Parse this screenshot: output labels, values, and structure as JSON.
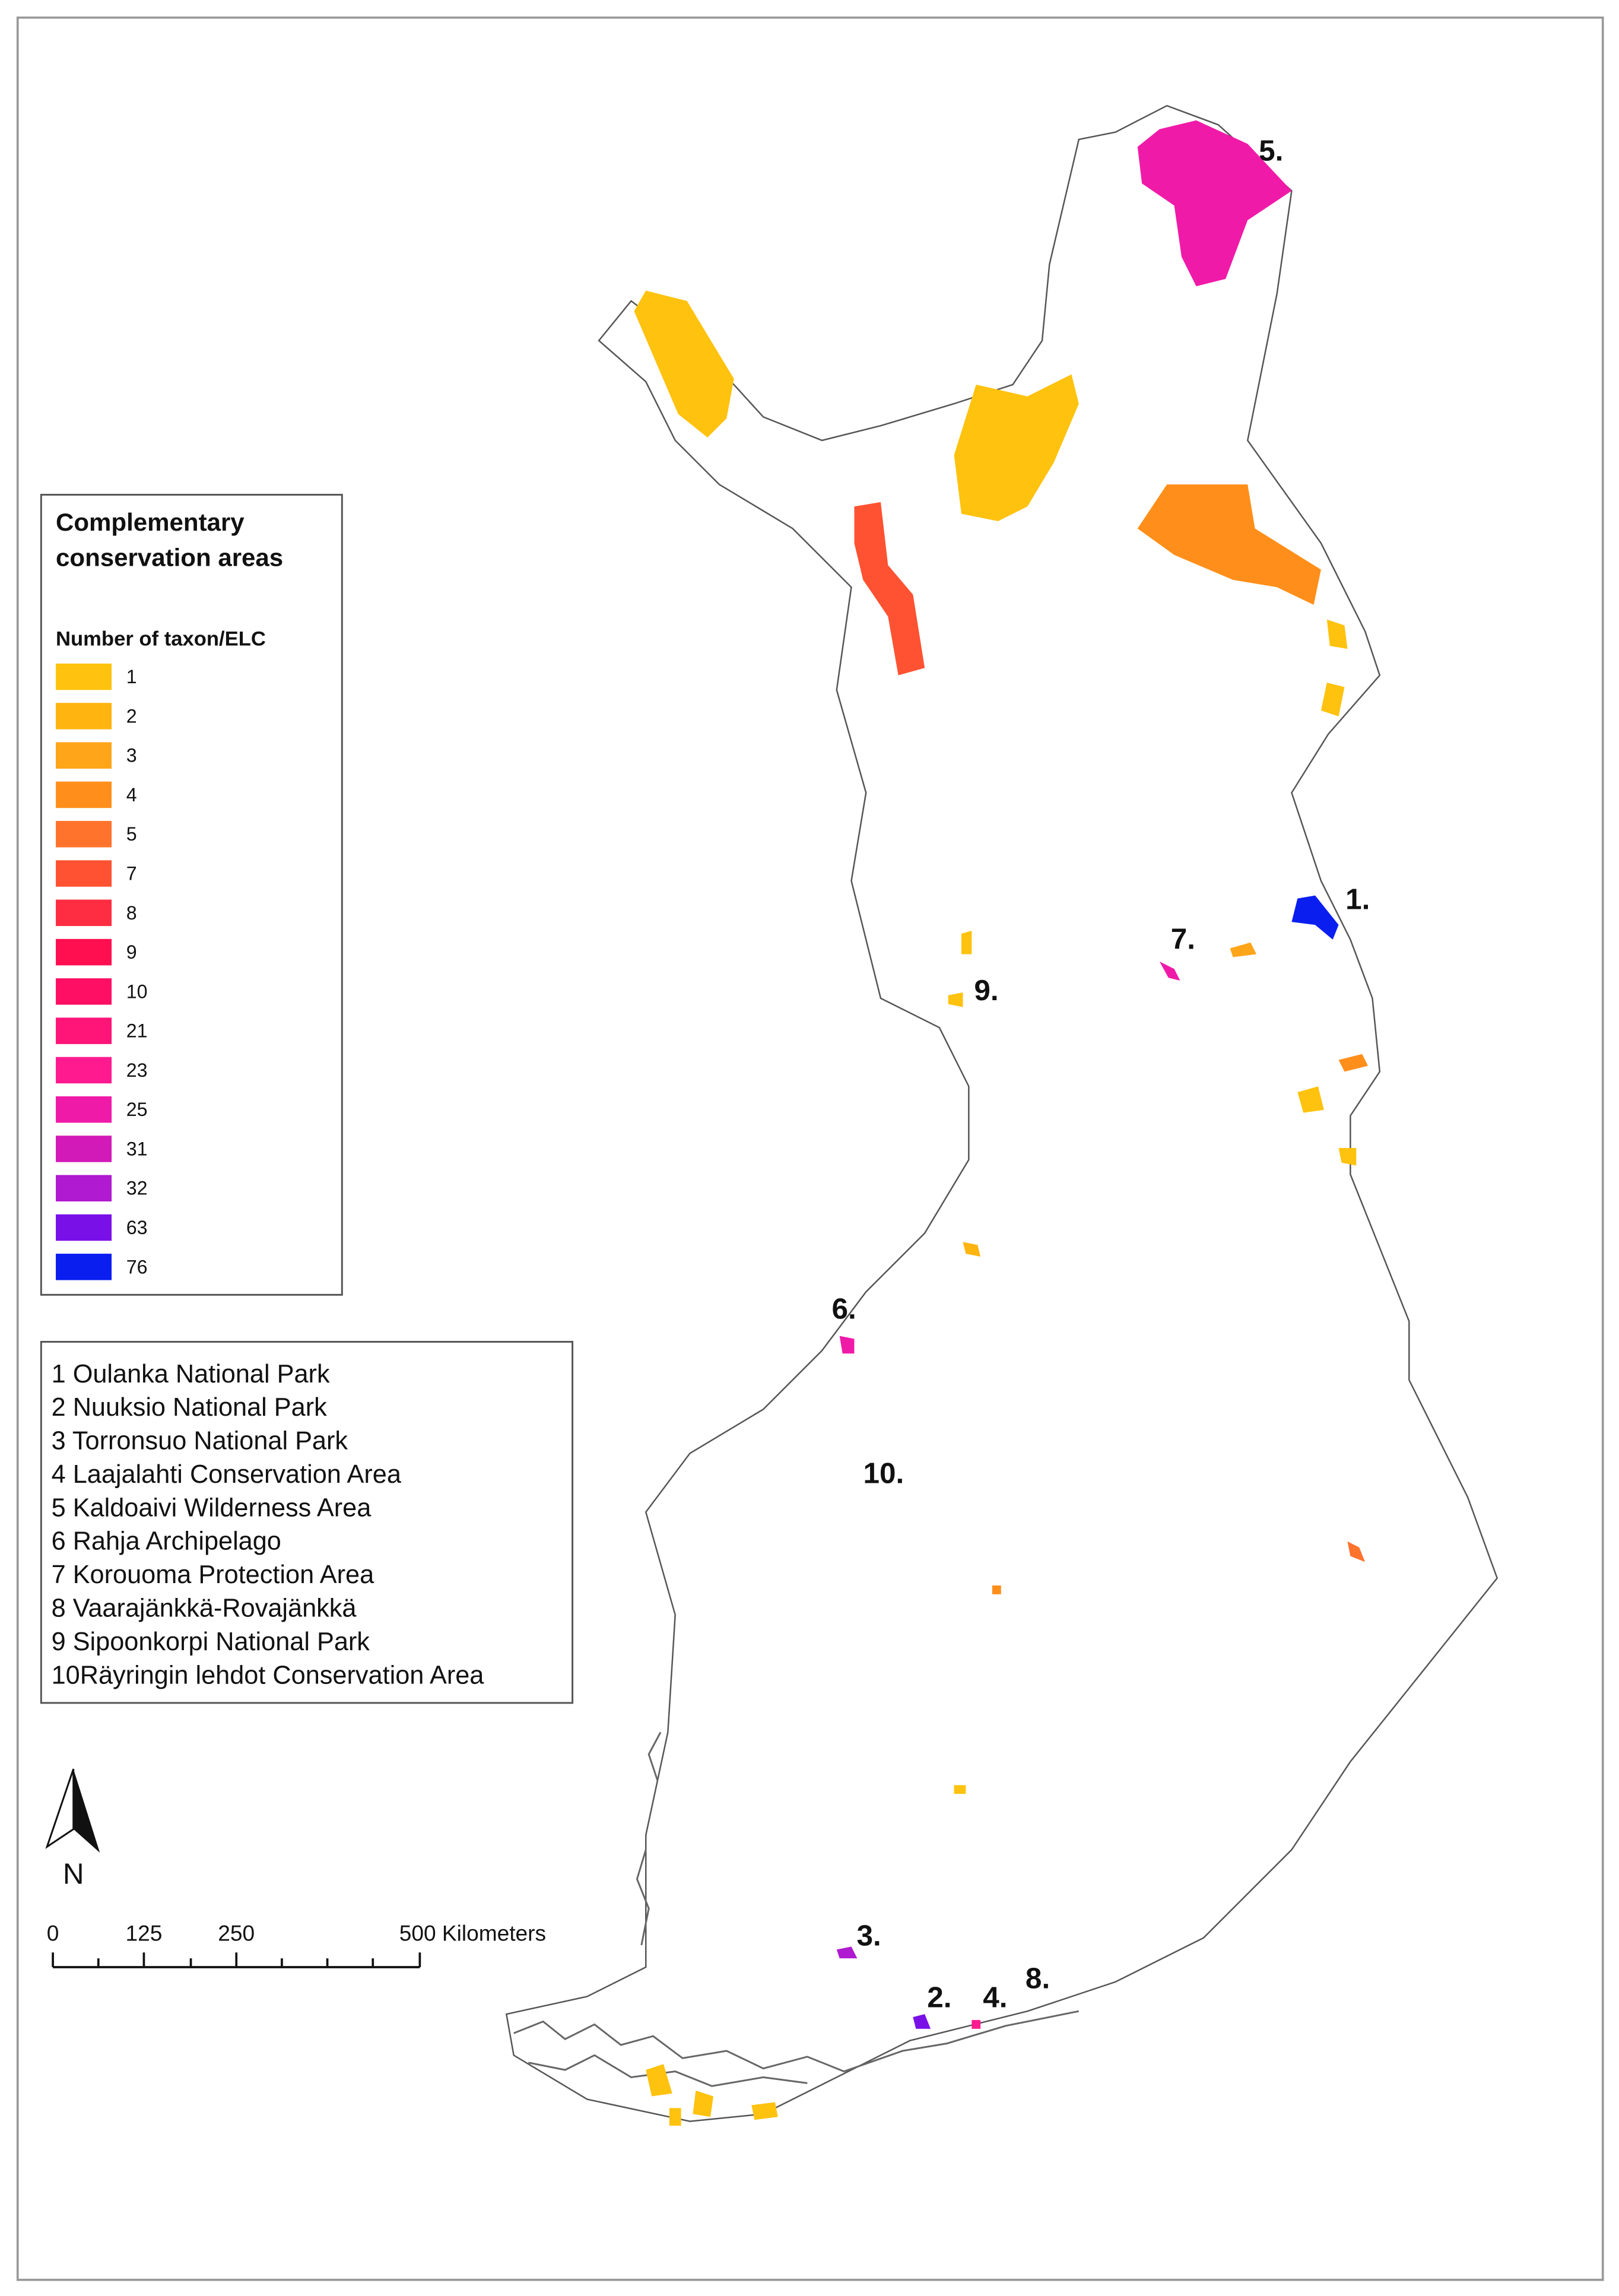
{
  "legend": {
    "title_lines": [
      "Complementary",
      "conservation areas"
    ],
    "subtitle": "Number of taxon/ELC",
    "entries": [
      {
        "label": "1",
        "color": "#ffc20e"
      },
      {
        "label": "2",
        "color": "#ffb40f"
      },
      {
        "label": "3",
        "color": "#ffa51a"
      },
      {
        "label": "4",
        "color": "#ff8f1a"
      },
      {
        "label": "5",
        "color": "#ff732d"
      },
      {
        "label": "7",
        "color": "#ff5232"
      },
      {
        "label": "8",
        "color": "#ff2d42"
      },
      {
        "label": "9",
        "color": "#ff0f50"
      },
      {
        "label": "10",
        "color": "#ff0f64"
      },
      {
        "label": "21",
        "color": "#ff1478"
      },
      {
        "label": "23",
        "color": "#ff1a90"
      },
      {
        "label": "25",
        "color": "#f01aa8"
      },
      {
        "label": "31",
        "color": "#d21ab8"
      },
      {
        "label": "32",
        "color": "#b01ad0"
      },
      {
        "label": "63",
        "color": "#7a10e8"
      },
      {
        "label": "76",
        "color": "#0a1ef0"
      }
    ]
  },
  "areas": [
    "1 Oulanka National Park",
    "2 Nuuksio National Park",
    "3 Torronsuo National Park",
    "4 Laajalahti Conservation Area",
    "5 Kaldoaivi Wilderness Area",
    "6 Rahja Archipelago",
    "7 Korouoma Protection Area",
    "8 Vaarajänkkä-Rovajänkkä",
    "9 Sipoonkorpi National Park",
    "10Räyringin lehdot Conservation Area"
  ],
  "map_labels": [
    "5.",
    "1.",
    "7.",
    "9.",
    "6.",
    "10.",
    "3.",
    "2.",
    "4.",
    "8."
  ],
  "north": "N",
  "scale_bar": [
    "0",
    "125",
    "250",
    "500 Kilometers"
  ]
}
